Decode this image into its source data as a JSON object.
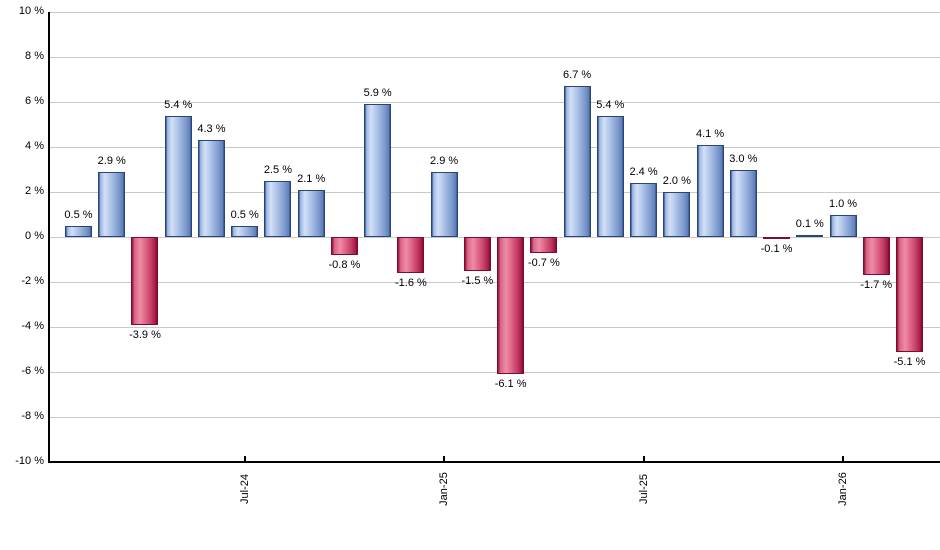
{
  "chart_data": {
    "type": "bar",
    "title": "",
    "subtitle": "",
    "xlabel": "",
    "ylabel": "",
    "ylim": [
      -10,
      10
    ],
    "ytick_step": 2,
    "ytick_suffix": " %",
    "value_label_suffix": " %",
    "grid": true,
    "legend": false,
    "bar_colors": {
      "positive": "#7b99cc",
      "negative": "#c23b60"
    },
    "axis_color": "#000000",
    "grid_color": "#c9c9c9",
    "values": [
      0.5,
      2.9,
      -3.9,
      5.4,
      4.3,
      0.5,
      2.5,
      2.1,
      -0.8,
      5.9,
      -1.6,
      2.9,
      -1.5,
      -6.1,
      -0.7,
      6.7,
      5.4,
      2.4,
      2.0,
      4.1,
      3.0,
      -0.1,
      0.1,
      1.0,
      -1.7,
      -5.1
    ],
    "value_labels": [
      "0.5 %",
      "2.9 %",
      "-3.9 %",
      "5.4 %",
      "4.3 %",
      "0.5 %",
      "2.5 %",
      "2.1 %",
      "-0.8 %",
      "5.9 %",
      "-1.6 %",
      "2.9 %",
      "-1.5 %",
      "-6.1 %",
      "-0.7 %",
      "6.7 %",
      "5.4 %",
      "2.4 %",
      "2.0 %",
      "4.1 %",
      "3.0 %",
      "-0.1 %",
      "0.1 %",
      "1.0 %",
      "-1.7 %",
      "-5.1 %"
    ],
    "y_tick_labels": [
      "10 %",
      "8 %",
      "6 %",
      "4 %",
      "2 %",
      "0 %",
      "-2 %",
      "-4 %",
      "-6 %",
      "-8 %",
      "-10 %"
    ],
    "x_ticks": [
      {
        "index": 5,
        "label": "Jul-24"
      },
      {
        "index": 11,
        "label": "Jan-25"
      },
      {
        "index": 17,
        "label": "Jul-25"
      },
      {
        "index": 23,
        "label": "Jan-26"
      }
    ]
  }
}
